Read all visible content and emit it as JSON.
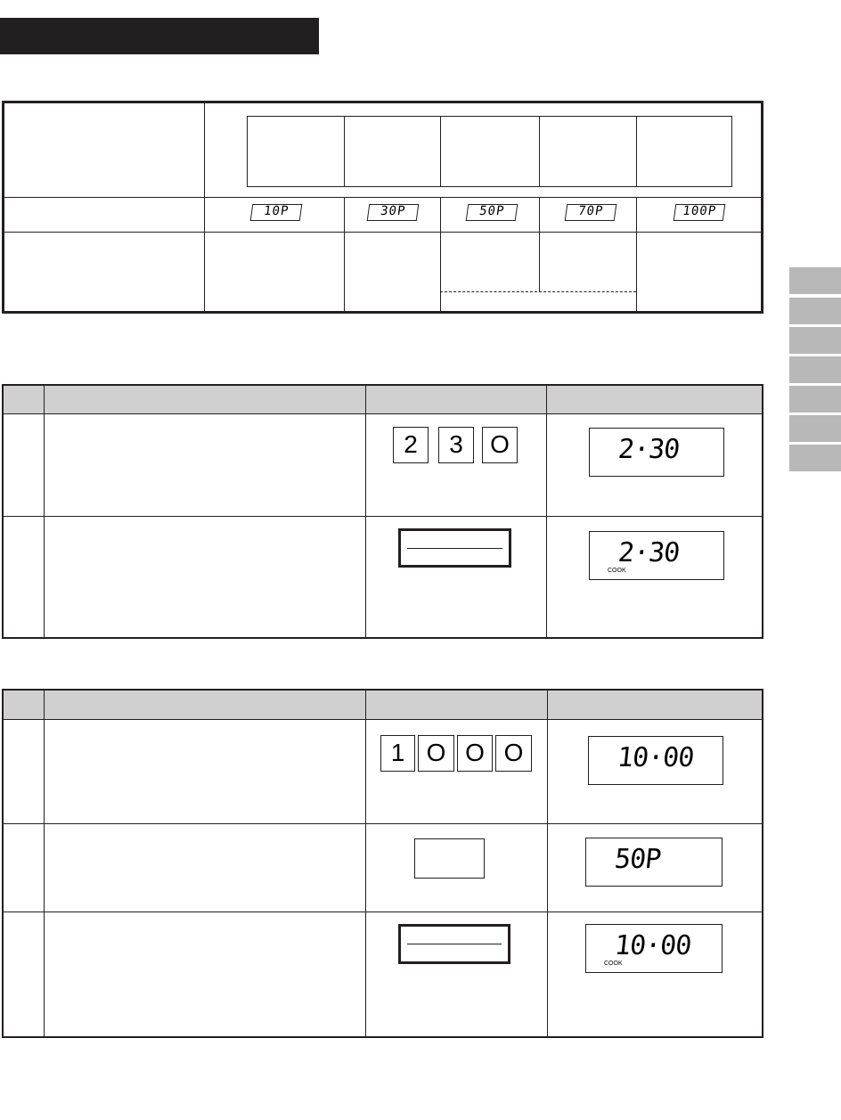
{
  "power_table": {
    "levels": [
      "10P",
      "30P",
      "50P",
      "70P",
      "100P"
    ]
  },
  "example1": {
    "keys": [
      "2",
      "3",
      "O"
    ],
    "display_step1": "2·30",
    "display_step2": "2·30",
    "indicator": "COOK"
  },
  "example2": {
    "keys": [
      "1",
      "O",
      "O",
      "O"
    ],
    "display_step1": "10·00",
    "display_step2": "50P",
    "display_step3": "10·00",
    "indicator": "COOK"
  },
  "side_tabs": 7
}
